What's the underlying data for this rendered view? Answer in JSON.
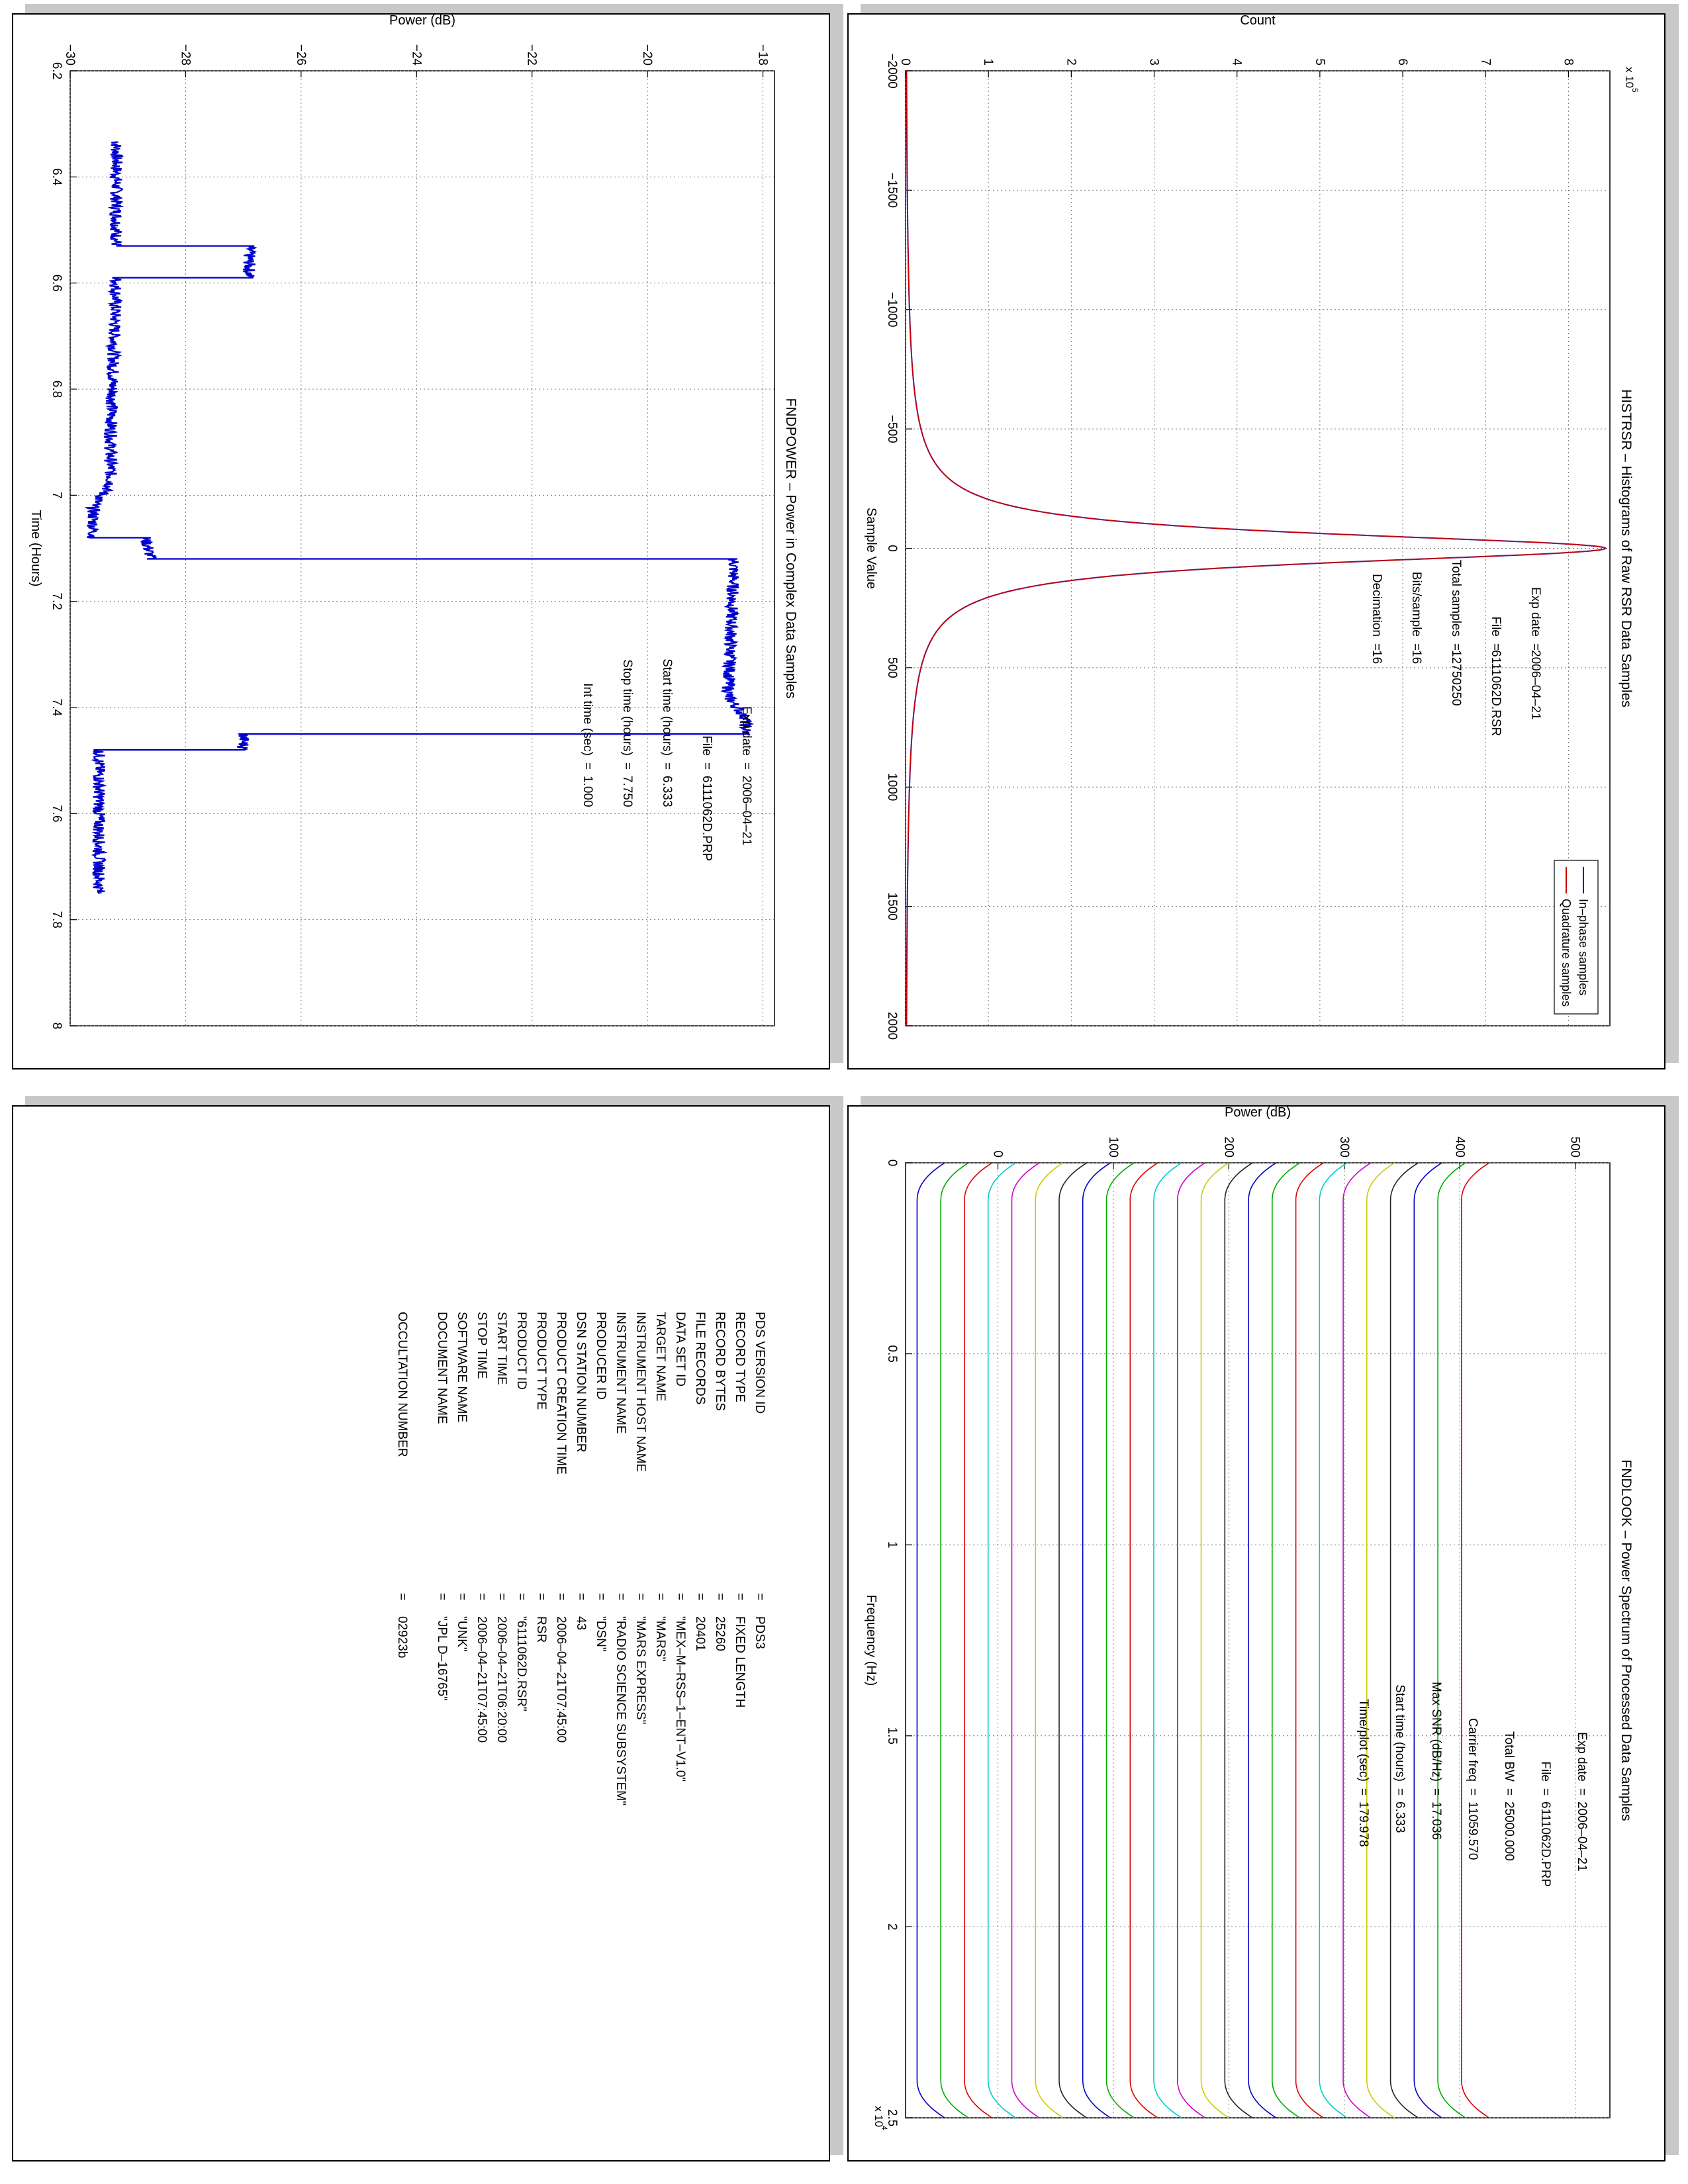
{
  "colors": {
    "blue": "#0000cc",
    "red": "#cc0000",
    "grid": "#777777"
  },
  "chart_data": [
    {
      "type": "line",
      "title": "HISTRSR – Histograms of Raw RSR Data Samples",
      "xlabel": "Sample Value",
      "ylabel": "Count",
      "y_exponent": "x 10",
      "y_exponent_power": "5",
      "xlim": [
        -2000,
        2000
      ],
      "ylim": [
        0,
        8.5
      ],
      "x_ticks": [
        "−2000",
        "−1500",
        "−1000",
        "−500",
        "0",
        "500",
        "1000",
        "1500",
        "2000"
      ],
      "y_ticks": [
        "0",
        "1",
        "2",
        "3",
        "4",
        "5",
        "6",
        "7",
        "8"
      ],
      "grid": true,
      "legend_position": "top-right",
      "series": [
        {
          "name": "In–phase samples",
          "color": "#0000cc",
          "peak": 8.45,
          "center": 0,
          "sigma": 75
        },
        {
          "name": "Quadrature samples",
          "color": "#cc0000",
          "peak": 8.45,
          "center": 0,
          "sigma": 75
        }
      ],
      "annotations": [
        {
          "label": "Exp date",
          "value": "2006–04–21"
        },
        {
          "label": "File",
          "value": "6111062D.RSR"
        },
        {
          "label": "Total samples",
          "value": "12750250"
        },
        {
          "label": "Bits/sample",
          "value": "16"
        },
        {
          "label": "Decimation",
          "value": "16"
        }
      ]
    },
    {
      "type": "line",
      "title": "FNDPOWER – Power in Complex Data Samples",
      "xlabel": "Time (Hours)",
      "ylabel": "Power (dB)",
      "xlim": [
        6.2,
        8
      ],
      "ylim": [
        -30,
        -17.8
      ],
      "x_ticks": [
        "6.2",
        "6.4",
        "6.6",
        "6.8",
        "7",
        "7.2",
        "7.4",
        "7.6",
        "7.8",
        "8"
      ],
      "y_ticks": [
        "−30",
        "−28",
        "−26",
        "−24",
        "−22",
        "−20",
        "−18"
      ],
      "grid": true,
      "series": [
        {
          "name": "",
          "color": "#0000cc",
          "x": [
            6.333,
            6.5,
            6.53,
            6.53,
            6.59,
            6.59,
            6.9,
            6.98,
            7.02,
            7.08,
            7.08,
            7.12,
            7.12,
            7.38,
            7.42,
            7.45,
            7.45,
            7.48,
            7.48,
            7.75
          ],
          "y": [
            -29.2,
            -29.2,
            -29.2,
            -26.9,
            -26.9,
            -29.2,
            -29.3,
            -29.3,
            -29.6,
            -29.6,
            -28.7,
            -28.6,
            -18.5,
            -18.6,
            -18.3,
            -18.3,
            -27.0,
            -27.0,
            -29.5,
            -29.5
          ]
        }
      ],
      "annotations": [
        {
          "label": "Exp date",
          "value": "2006–04–21"
        },
        {
          "label": "File",
          "value": "6111062D.PRP"
        },
        {
          "label": "Start time (hours)",
          "value": "6.333"
        },
        {
          "label": "Stop time (hours)",
          "value": "7.750"
        },
        {
          "label": "Int time (sec)",
          "value": "1.000"
        }
      ]
    },
    {
      "type": "line",
      "title": "FNDLOOK – Power Spectrum of Processed Data Samples",
      "xlabel": "Frequency (Hz)",
      "ylabel": "Power (dB)",
      "x_exponent": "x 10",
      "x_exponent_power": "4",
      "xlim": [
        0,
        2.5
      ],
      "ylim": [
        -80,
        530
      ],
      "x_ticks": [
        "0",
        "0.5",
        "1",
        "1.5",
        "2",
        "2.5"
      ],
      "y_ticks": [
        "0",
        "100",
        "200",
        "300",
        "400",
        "500"
      ],
      "grid": true,
      "series_count": 24,
      "series_offset_step": 20.5,
      "series_plateau_start": -70,
      "series_colors": [
        "#0000cc",
        "#00aa00",
        "#dd0000",
        "#00cccc",
        "#cc00cc",
        "#cccc00",
        "#222222"
      ],
      "annotations": [
        {
          "label": "Exp date",
          "value": "2006–04–21"
        },
        {
          "label": "File",
          "value": "6111062D.PRP"
        },
        {
          "label": "Total BW",
          "value": "25000.000"
        },
        {
          "label": "Carrier freq",
          "value": "11059.570"
        },
        {
          "label": "Max SNR (dB/Hz)",
          "value": "17.036"
        },
        {
          "label": "Start time (hours)",
          "value": "6.333"
        },
        {
          "label": "Time/plot (sec)",
          "value": "179.978"
        }
      ]
    }
  ],
  "label_table": [
    {
      "key": "PDS VERSION ID",
      "value": "PDS3"
    },
    {
      "key": "RECORD TYPE",
      "value": "FIXED LENGTH"
    },
    {
      "key": "RECORD BYTES",
      "value": "25260"
    },
    {
      "key": "FILE RECORDS",
      "value": "20401"
    },
    {
      "key": "DATA SET ID",
      "value": "\"MEX–M–RSS–1–ENT–V1.0\""
    },
    {
      "key": "TARGET NAME",
      "value": "\"MARS\""
    },
    {
      "key": "INSTRUMENT HOST NAME",
      "value": "\"MARS EXPRESS\""
    },
    {
      "key": "INSTRUMENT NAME",
      "value": "\"RADIO SCIENCE SUBSYSTEM\""
    },
    {
      "key": "PRODUCER ID",
      "value": "\"DSN\""
    },
    {
      "key": "DSN STATION NUMBER",
      "value": "43"
    },
    {
      "key": "PRODUCT CREATION TIME",
      "value": "2006–04–21T07:45:00"
    },
    {
      "key": "PRODUCT TYPE",
      "value": "RSR"
    },
    {
      "key": "PRODUCT ID",
      "value": "\"6111062D.RSR\""
    },
    {
      "key": "START TIME",
      "value": "2006–04–21T06:20:00"
    },
    {
      "key": "STOP TIME",
      "value": "2006–04–21T07:45:00"
    },
    {
      "key": "SOFTWARE NAME",
      "value": "\"UNK\""
    },
    {
      "key": "DOCUMENT NAME",
      "value": "\"JPL D–16765\""
    },
    {
      "key": "OCCULTATION NUMBER",
      "value": "02923b"
    }
  ],
  "label_separator": "="
}
